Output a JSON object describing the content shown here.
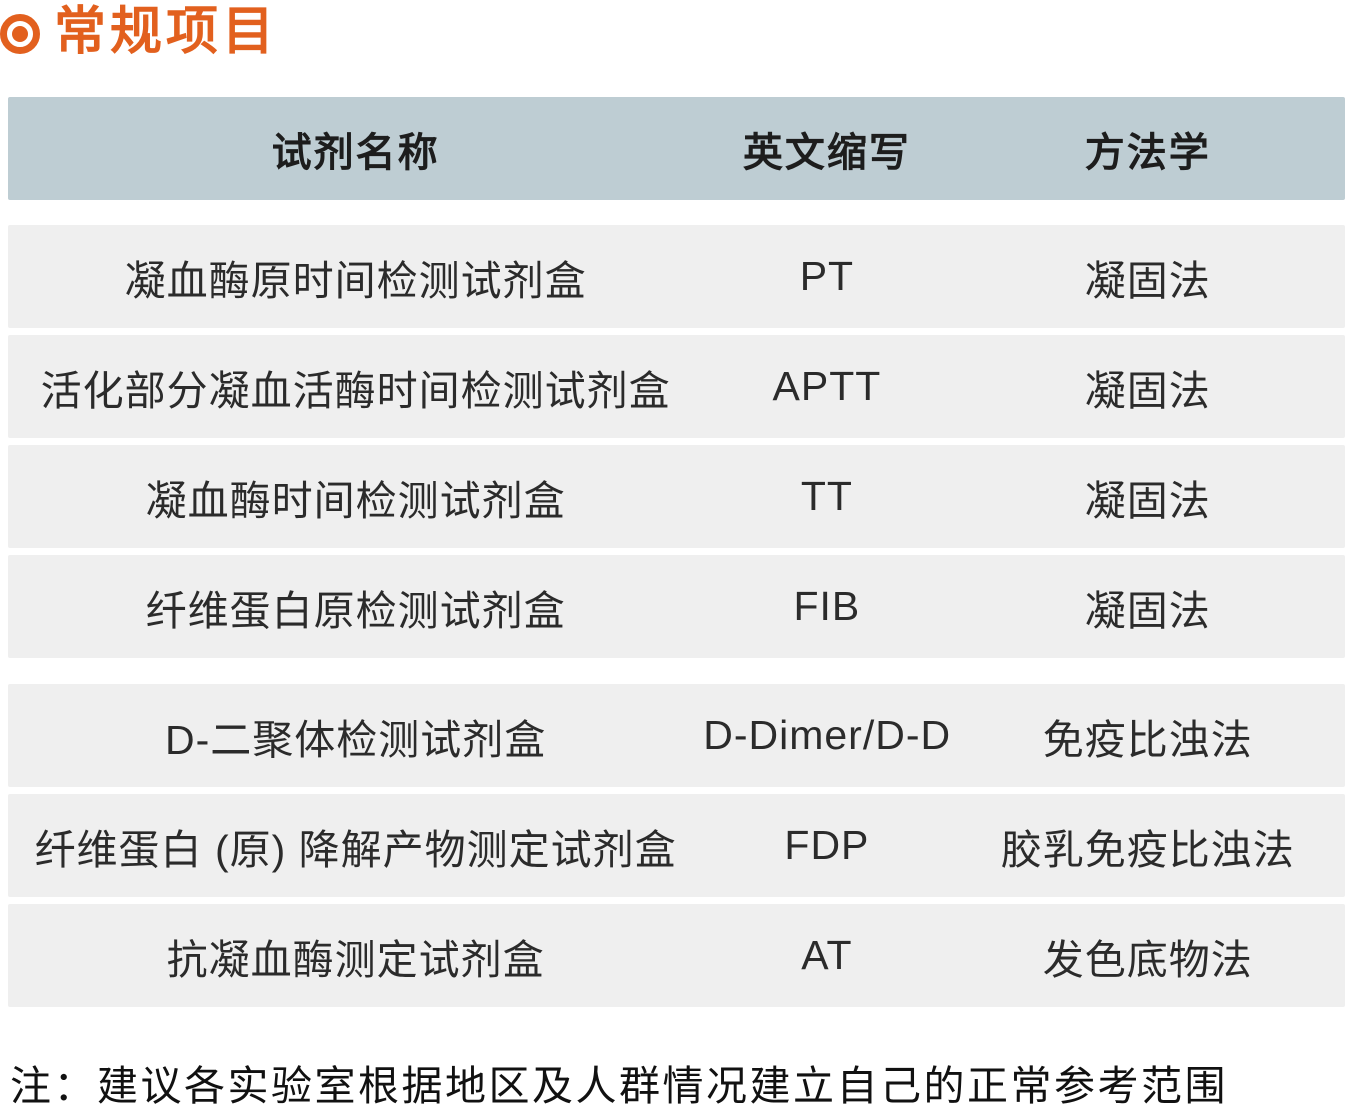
{
  "page": {
    "title": "常规项目",
    "accent_color": "#E2601E",
    "note": "注：建议各实验室根据地区及人群情况建立自己的正常参考范围"
  },
  "table": {
    "header_bg": "#BECDD3",
    "row_bg": "#EFEFEF",
    "headers": [
      "试剂名称",
      "英文缩写",
      "方法学"
    ],
    "groups": [
      {
        "rows": [
          {
            "name": "凝血酶原时间检测试剂盒",
            "abbr": "PT",
            "method": "凝固法"
          },
          {
            "name": "活化部分凝血活酶时间检测试剂盒",
            "abbr": "APTT",
            "method": "凝固法"
          },
          {
            "name": "凝血酶时间检测试剂盒",
            "abbr": "TT",
            "method": "凝固法"
          },
          {
            "name": "纤维蛋白原检测试剂盒",
            "abbr": "FIB",
            "method": "凝固法"
          }
        ]
      },
      {
        "rows": [
          {
            "name": "D-二聚体检测试剂盒",
            "abbr": "D-Dimer/D-D",
            "method": "免疫比浊法"
          },
          {
            "name": "纤维蛋白 (原) 降解产物测定试剂盒",
            "abbr": "FDP",
            "method": "胶乳免疫比浊法"
          },
          {
            "name": "抗凝血酶测定试剂盒",
            "abbr": "AT",
            "method": "发色底物法"
          }
        ]
      }
    ]
  }
}
